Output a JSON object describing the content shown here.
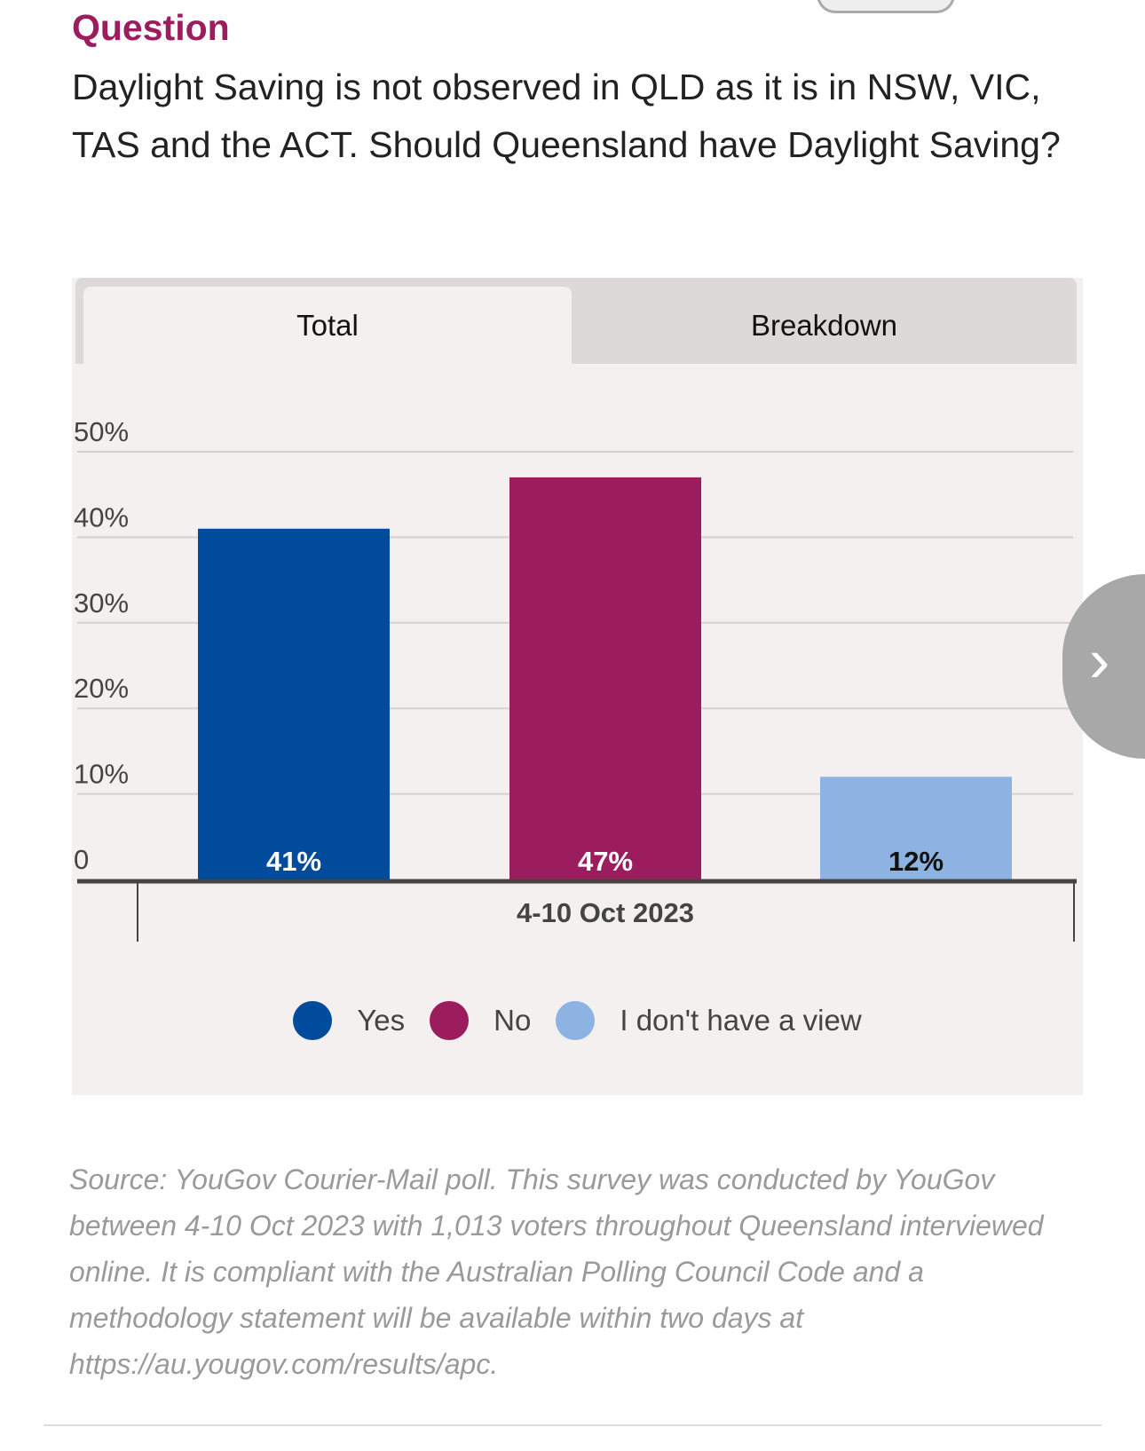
{
  "question": {
    "label": "Question",
    "text": "Daylight Saving is not observed in QLD as it is in NSW, VIC, TAS and the ACT. Should Queensland have Daylight Saving?"
  },
  "tabs": [
    {
      "label": "Total",
      "active": true
    },
    {
      "label": "Breakdown",
      "active": false
    }
  ],
  "chart_data": {
    "type": "bar",
    "categories": [
      "4-10 Oct 2023"
    ],
    "series": [
      {
        "name": "Yes",
        "values": [
          41
        ],
        "label": "41%",
        "color": "#004b9b",
        "label_color": "#ffffff"
      },
      {
        "name": "No",
        "values": [
          47
        ],
        "label": "47%",
        "color": "#9b1d5e",
        "label_color": "#ffffff"
      },
      {
        "name": "I don't have a view",
        "values": [
          12
        ],
        "label": "12%",
        "color": "#8db3e2",
        "label_color": "#111111"
      }
    ],
    "yticks": [
      "0",
      "10%",
      "20%",
      "30%",
      "40%",
      "50%"
    ],
    "ylim": [
      0,
      50
    ],
    "grid": true,
    "legend": "bottom-center"
  },
  "source": "Source: YouGov Courier-Mail poll. This survey was conducted by YouGov between 4-10 Oct 2023  with 1,013 voters throughout Queensland interviewed online. It is compliant with the Australian Polling Council Code and a methodology statement will be available within two days at https://au.yougov.com/results/apc.",
  "icons": {
    "next": "chevron-right-icon"
  }
}
